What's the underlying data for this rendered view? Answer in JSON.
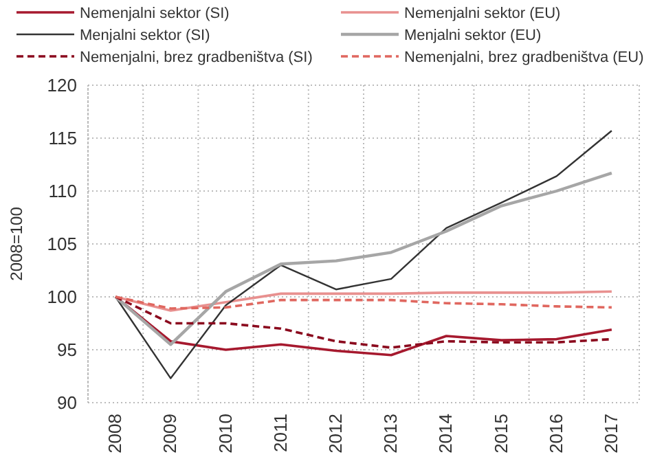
{
  "chart_data": {
    "type": "line",
    "ylabel": "2008=100",
    "categories": [
      "2008",
      "2009",
      "2010",
      "2011",
      "2012",
      "2013",
      "2014",
      "2015",
      "2016",
      "2017"
    ],
    "series": [
      {
        "name": "Nemenjalni sektor (SI)",
        "color": "#a6192e",
        "line_style": "solid",
        "values": [
          100,
          95.8,
          95.0,
          95.5,
          94.9,
          94.5,
          96.3,
          95.9,
          96.0,
          96.9
        ]
      },
      {
        "name": "Nemenjalni sektor (EU)",
        "color": "#e8908f",
        "line_style": "solid",
        "values": [
          100,
          98.7,
          99.5,
          100.3,
          100.3,
          100.3,
          100.4,
          100.4,
          100.4,
          100.5
        ]
      },
      {
        "name": "Menjalni sektor (SI)",
        "color": "#333333",
        "line_style": "solid",
        "values": [
          100,
          92.3,
          99.2,
          103.0,
          100.7,
          101.7,
          106.5,
          108.9,
          111.4,
          115.7
        ]
      },
      {
        "name": "Menjalni sektor (EU)",
        "color": "#a6a6a6",
        "line_style": "solid",
        "values": [
          100,
          95.5,
          100.5,
          103.1,
          103.4,
          104.2,
          106.2,
          108.6,
          110.0,
          111.7
        ]
      },
      {
        "name": "Nemenjalni, brez gradbeništva (SI)",
        "color": "#8b0a1e",
        "line_style": "dashed",
        "values": [
          100,
          97.5,
          97.5,
          97.0,
          95.8,
          95.2,
          95.8,
          95.7,
          95.7,
          96.0
        ]
      },
      {
        "name": "Nemenjalni, brez gradbeništva (EU)",
        "color": "#e0675f",
        "line_style": "dashed",
        "values": [
          100,
          98.9,
          99.0,
          99.7,
          99.7,
          99.7,
          99.4,
          99.3,
          99.1,
          99.0
        ]
      }
    ],
    "ylim": [
      90,
      120
    ],
    "yticks": [
      90,
      95,
      100,
      105,
      110,
      115,
      120
    ],
    "grid": true,
    "legend": "top",
    "marker": "none"
  }
}
